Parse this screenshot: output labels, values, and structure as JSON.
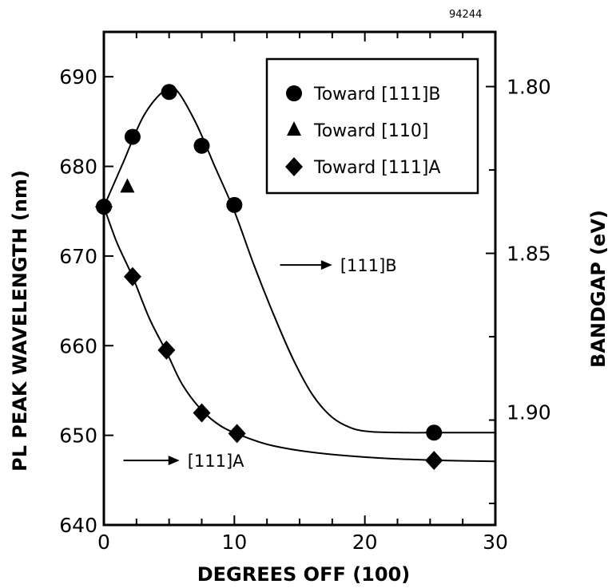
{
  "figure_id": "94244",
  "chart_data": {
    "type": "scatter",
    "xlabel": "DEGREES OFF (100)",
    "ylabel": "PL PEAK WAVELENGTH (nm)",
    "ylabel_right": "BANDGAP (eV)",
    "xlim": [
      0,
      30
    ],
    "ylim": [
      640,
      695
    ],
    "x_ticks": [
      0,
      10,
      20,
      30
    ],
    "y_ticks": [
      640,
      650,
      660,
      670,
      680,
      690
    ],
    "y_right_ticks": [
      {
        "label": "1.80",
        "value": 688.9
      },
      {
        "label": "1.85",
        "value": 670.3
      },
      {
        "label": "1.90",
        "value": 652.6
      }
    ],
    "legend_position": "top-right",
    "series": [
      {
        "name": "Toward [111]B",
        "marker": "circle",
        "points": [
          [
            0,
            675.5
          ],
          [
            2.2,
            683.3
          ],
          [
            5,
            688.3
          ],
          [
            7.5,
            682.3
          ],
          [
            10,
            675.7
          ],
          [
            25.3,
            650.3
          ]
        ],
        "curve": [
          [
            0,
            675.5
          ],
          [
            1.5,
            680.5
          ],
          [
            3,
            685.5
          ],
          [
            4.5,
            688.3
          ],
          [
            5.5,
            688.6
          ],
          [
            7,
            685
          ],
          [
            8.5,
            680
          ],
          [
            10,
            675
          ],
          [
            11.5,
            669
          ],
          [
            13,
            663.5
          ],
          [
            14.5,
            658.5
          ],
          [
            16,
            654.5
          ],
          [
            17.5,
            652
          ],
          [
            19,
            650.8
          ],
          [
            20.5,
            650.4
          ],
          [
            23,
            650.3
          ],
          [
            26,
            650.3
          ],
          [
            30,
            650.3
          ]
        ]
      },
      {
        "name": "Toward [110]",
        "marker": "triangle",
        "points": [
          [
            1.8,
            677.7
          ]
        ]
      },
      {
        "name": "Toward [111]A",
        "marker": "diamond",
        "points": [
          [
            0,
            675.5
          ],
          [
            2.2,
            667.7
          ],
          [
            4.8,
            659.5
          ],
          [
            7.5,
            652.5
          ],
          [
            10.2,
            650.2
          ],
          [
            25.3,
            647.2
          ]
        ],
        "curve": [
          [
            0,
            675.5
          ],
          [
            1,
            671.5
          ],
          [
            2.2,
            667.7
          ],
          [
            3.5,
            663
          ],
          [
            4.8,
            659.3
          ],
          [
            6,
            655.7
          ],
          [
            7.5,
            652.8
          ],
          [
            9,
            651
          ],
          [
            10.5,
            650
          ],
          [
            12.5,
            649
          ],
          [
            15,
            648.3
          ],
          [
            18,
            647.8
          ],
          [
            22,
            647.4
          ],
          [
            26,
            647.2
          ],
          [
            30,
            647.1
          ]
        ]
      }
    ],
    "annotations": [
      {
        "text": "[111]B",
        "arrow_from": [
          13.5,
          669
        ],
        "arrow_to": [
          17.5,
          669
        ]
      },
      {
        "text": "[111]A",
        "arrow_from": [
          1.5,
          647.2
        ],
        "arrow_to": [
          5.8,
          647.2
        ]
      }
    ]
  }
}
